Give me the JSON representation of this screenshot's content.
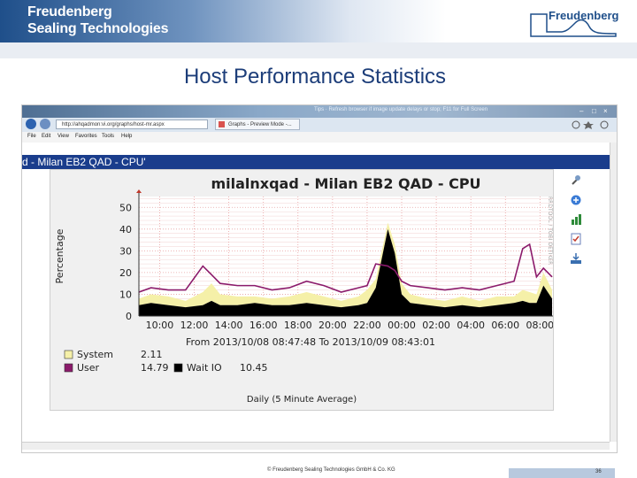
{
  "brand": {
    "line1": "Freudenberg",
    "line2": "Sealing Technologies",
    "logo_text": "Freudenberg"
  },
  "slide": {
    "title": "Host Performance Statistics",
    "footer": "© Freudenberg Sealing Technologies GmbH & Co. KG",
    "page_number": "36"
  },
  "browser": {
    "tip_text": "Tips · Refresh browser if image update delays or stop; F11 for Full Screen",
    "address": "http://ahqadmon:vi.org/graphs/host-mr.aspx",
    "tab_label": "Graphs - Preview Mode -...",
    "menu": [
      "File",
      "Edit",
      "View",
      "Favorites",
      "Tools",
      "Help"
    ],
    "app_title": "d - Milan EB2 QAD - CPU'"
  },
  "chart_data": {
    "type": "area",
    "title": "milalnxqad - Milan EB2 QAD - CPU",
    "ylabel": "Percentage",
    "side_label": "RRDTOOL / TOBI OETIKER",
    "x_ticks": [
      "10:00",
      "12:00",
      "14:00",
      "16:00",
      "18:00",
      "20:00",
      "22:00",
      "00:00",
      "02:00",
      "04:00",
      "06:00",
      "08:00"
    ],
    "y_ticks": [
      0,
      10,
      20,
      30,
      40,
      50
    ],
    "ylim": [
      0,
      55
    ],
    "subtitle": "From 2013/10/08 08:47:48 To 2013/10/09 08:43:01",
    "footer": "Daily (5 Minute Average)",
    "legend": [
      {
        "name": "System",
        "value": "2.11",
        "color": "#f5f0a8"
      },
      {
        "name": "User",
        "value": "14.79",
        "color": "#8b1a6b"
      },
      {
        "name": "Wait IO",
        "value": "10.45",
        "color": "#000000"
      }
    ],
    "x": [
      8.8,
      9.5,
      10.5,
      11.5,
      12.5,
      13.0,
      13.5,
      14.5,
      15.5,
      16.5,
      17.5,
      18.5,
      19.5,
      20.5,
      21.5,
      22.0,
      22.5,
      23.2,
      23.6,
      24.0,
      24.5,
      25.5,
      26.5,
      27.5,
      28.5,
      29.5,
      30.5,
      31.0,
      31.4,
      31.8,
      32.2,
      32.7
    ],
    "series": [
      {
        "name": "System",
        "values": [
          3,
          4,
          4,
          3,
          6,
          8,
          5,
          4,
          3,
          3,
          4,
          5,
          4,
          3,
          4,
          6,
          4,
          3,
          4,
          5,
          4,
          3,
          3,
          4,
          3,
          4,
          3,
          5,
          5,
          4,
          6,
          4
        ]
      },
      {
        "name": "User",
        "values": [
          11,
          13,
          12,
          12,
          23,
          19,
          15,
          14,
          14,
          12,
          13,
          16,
          14,
          11,
          13,
          14,
          24,
          23,
          21,
          16,
          14,
          13,
          12,
          13,
          12,
          14,
          16,
          31,
          33,
          18,
          22,
          18
        ]
      },
      {
        "name": "Wait IO",
        "values": [
          5,
          6,
          5,
          4,
          5,
          7,
          5,
          5,
          6,
          5,
          5,
          6,
          5,
          4,
          5,
          6,
          13,
          40,
          29,
          10,
          6,
          5,
          4,
          5,
          4,
          5,
          6,
          7,
          6,
          6,
          14,
          8
        ]
      }
    ]
  }
}
